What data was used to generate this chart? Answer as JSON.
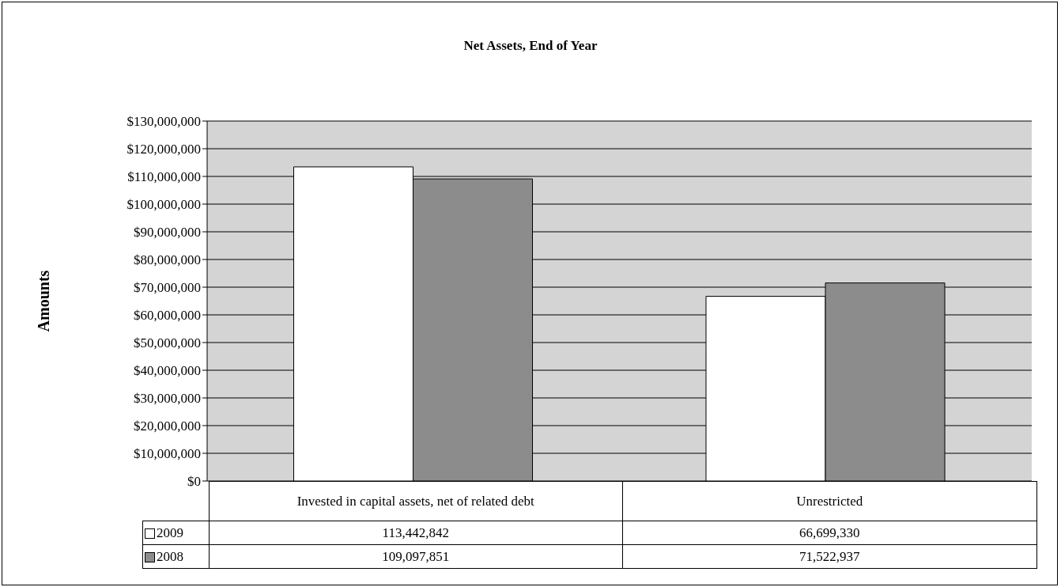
{
  "chart_data": {
    "type": "bar",
    "title": "Net Assets, End of Year",
    "ylabel": "Amounts",
    "categories": [
      "Invested in capital assets, net of related debt",
      "Unrestricted"
    ],
    "series": [
      {
        "name": "2009",
        "color": "#ffffff",
        "values": [
          113442842,
          66699330
        ],
        "value_labels": [
          "113,442,842",
          "66,699,330"
        ]
      },
      {
        "name": "2008",
        "color": "#8c8c8c",
        "values": [
          109097851,
          71522937
        ],
        "value_labels": [
          "109,097,851",
          "71,522,937"
        ]
      }
    ],
    "ylim": [
      0,
      130000000
    ],
    "yticks": [
      {
        "value": 0,
        "label": "$0"
      },
      {
        "value": 10000000,
        "label": "$10,000,000"
      },
      {
        "value": 20000000,
        "label": "$20,000,000"
      },
      {
        "value": 30000000,
        "label": "$30,000,000"
      },
      {
        "value": 40000000,
        "label": "$40,000,000"
      },
      {
        "value": 50000000,
        "label": "$50,000,000"
      },
      {
        "value": 60000000,
        "label": "$60,000,000"
      },
      {
        "value": 70000000,
        "label": "$70,000,000"
      },
      {
        "value": 80000000,
        "label": "$80,000,000"
      },
      {
        "value": 90000000,
        "label": "$90,000,000"
      },
      {
        "value": 100000000,
        "label": "$100,000,000"
      },
      {
        "value": 110000000,
        "label": "$110,000,000"
      },
      {
        "value": 120000000,
        "label": "$120,000,000"
      },
      {
        "value": 130000000,
        "label": "$130,000,000"
      }
    ],
    "grid": "y",
    "legend": "bottom left"
  }
}
